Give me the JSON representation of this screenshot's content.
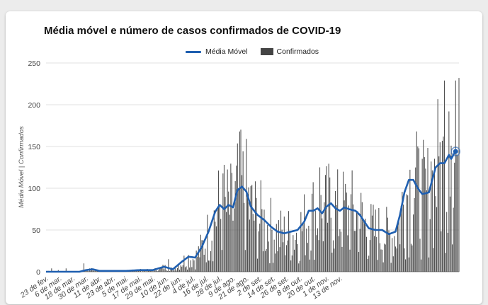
{
  "chart_data": {
    "type": "bar",
    "title": "Média móvel e número de casos confirmados de COVID-19",
    "ylabel": "Média Móvel | Confirmados",
    "xlabel": "",
    "ylim": [
      0,
      250
    ],
    "yticks": [
      0,
      50,
      100,
      150,
      200,
      250
    ],
    "grid": true,
    "legend_position": "top",
    "colors": {
      "line": "#1f5fb0",
      "bars": "#444444"
    },
    "x_tick_labels": [
      "23 de fev.",
      "6 de mar.",
      "18 de mar.",
      "30 de mar.",
      "11 de abr.",
      "23 de abr.",
      "5 de mai.",
      "17 de mai.",
      "29 de mai.",
      "10 de jun.",
      "22 de jun.",
      "4 de jul.",
      "16 de jul.",
      "28 de jul.",
      "9 de ago.",
      "21 de ago.",
      "2 de set.",
      "14 de set.",
      "26 de set.",
      "8 de out.",
      "20 de out.",
      "1 de nov.",
      "13 de nov."
    ],
    "series": [
      {
        "name": "Média Móvel",
        "kind": "line",
        "key_points": [
          [
            0,
            0
          ],
          [
            30,
            0
          ],
          [
            36,
            2
          ],
          [
            42,
            3
          ],
          [
            48,
            1
          ],
          [
            60,
            1
          ],
          [
            72,
            1
          ],
          [
            84,
            2
          ],
          [
            96,
            2
          ],
          [
            106,
            6
          ],
          [
            114,
            3
          ],
          [
            122,
            12
          ],
          [
            128,
            18
          ],
          [
            134,
            17
          ],
          [
            140,
            30
          ],
          [
            146,
            48
          ],
          [
            152,
            72
          ],
          [
            156,
            80
          ],
          [
            160,
            75
          ],
          [
            164,
            80
          ],
          [
            168,
            77
          ],
          [
            172,
            98
          ],
          [
            176,
            102
          ],
          [
            180,
            96
          ],
          [
            184,
            78
          ],
          [
            190,
            68
          ],
          [
            196,
            62
          ],
          [
            202,
            54
          ],
          [
            208,
            48
          ],
          [
            214,
            46
          ],
          [
            220,
            48
          ],
          [
            226,
            50
          ],
          [
            232,
            60
          ],
          [
            236,
            73
          ],
          [
            240,
            73
          ],
          [
            244,
            76
          ],
          [
            248,
            70
          ],
          [
            252,
            78
          ],
          [
            256,
            82
          ],
          [
            260,
            76
          ],
          [
            264,
            73
          ],
          [
            268,
            77
          ],
          [
            272,
            75
          ],
          [
            278,
            73
          ],
          [
            282,
            68
          ],
          [
            286,
            60
          ],
          [
            290,
            52
          ],
          [
            296,
            50
          ],
          [
            302,
            50
          ],
          [
            308,
            45
          ],
          [
            314,
            48
          ],
          [
            318,
            68
          ],
          [
            322,
            95
          ],
          [
            326,
            110
          ],
          [
            330,
            110
          ],
          [
            334,
            100
          ],
          [
            338,
            93
          ],
          [
            344,
            95
          ],
          [
            350,
            125
          ],
          [
            354,
            130
          ],
          [
            358,
            130
          ],
          [
            362,
            140
          ],
          [
            364,
            135
          ],
          [
            366,
            140
          ],
          [
            368,
            144
          ]
        ]
      },
      {
        "name": "Confirmados",
        "kind": "bar",
        "days": 372,
        "notable_peaks": [
          [
            174,
            168
          ],
          [
            160,
            128
          ],
          [
            246,
            125
          ],
          [
            368,
            229
          ],
          [
            358,
            229
          ],
          [
            362,
            192
          ],
          [
            364,
            151
          ],
          [
            346,
            132
          ],
          [
            354,
            155
          ],
          [
            334,
            150
          ]
        ]
      }
    ]
  },
  "legend": {
    "line_label": "Média Móvel",
    "bar_label": "Confirmados"
  }
}
